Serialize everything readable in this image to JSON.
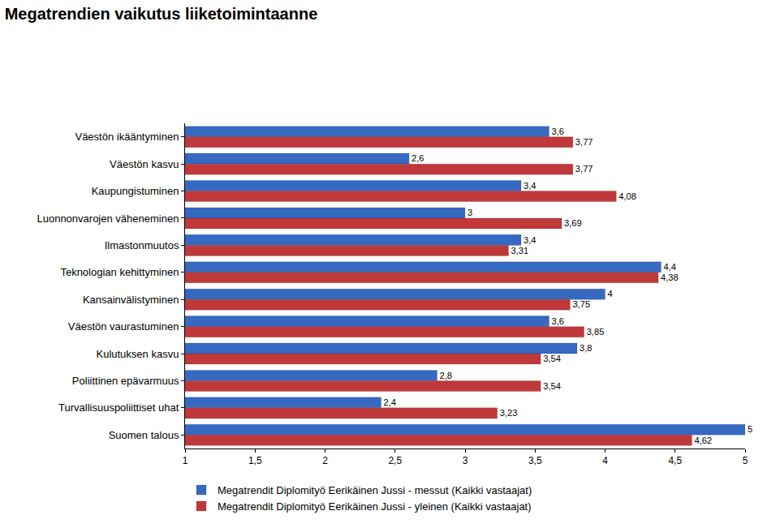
{
  "chart_data": {
    "type": "bar",
    "orientation": "horizontal",
    "title": "Megatrendien vaikutus liiketoimintaanne",
    "categories": [
      "Väestön ikääntyminen",
      "Väestön kasvu",
      "Kaupungistuminen",
      "Luonnonvarojen väheneminen",
      "Ilmastonmuutos",
      "Teknologian kehittyminen",
      "Kansainvälistyminen",
      "Väestön vaurastuminen",
      "Kulutuksen kasvu",
      "Poliittinen epävarmuus",
      "Turvallisuuspoliittiset uhat",
      "Suomen talous"
    ],
    "series": [
      {
        "name": "Megatrendit Diplomityö Eerikäinen Jussi - messut (Kaikki vastaajat)",
        "color": "#3569c2",
        "values": [
          3.6,
          2.6,
          3.4,
          3,
          3.4,
          4.4,
          4,
          3.6,
          3.8,
          2.8,
          2.4,
          5
        ],
        "value_labels": [
          "3,6",
          "2,6",
          "3,4",
          "3",
          "3,4",
          "4,4",
          "4",
          "3,6",
          "3,8",
          "2,8",
          "2,4",
          "5"
        ]
      },
      {
        "name": "Megatrendit Diplomityö Eerikäinen Jussi - yleinen (Kaikki vastaajat)",
        "color": "#c0383a",
        "values": [
          3.77,
          3.77,
          4.08,
          3.69,
          3.31,
          4.38,
          3.75,
          3.85,
          3.54,
          3.54,
          3.23,
          4.62
        ],
        "value_labels": [
          "3,77",
          "3,77",
          "4,08",
          "3,69",
          "3,31",
          "4,38",
          "3,75",
          "3,85",
          "3,54",
          "3,54",
          "3,23",
          "4,62"
        ]
      }
    ],
    "xlim": [
      1,
      5
    ],
    "xticks": [
      1,
      {
        "value": 1.5,
        "label": "1,5"
      },
      2,
      {
        "value": 2.5,
        "label": "2,5"
      },
      3,
      {
        "value": 3.5,
        "label": "3,5"
      },
      4,
      {
        "value": 4.5,
        "label": "4,5"
      },
      5
    ],
    "grid": false,
    "legend": "bottom",
    "data_labels": true
  }
}
